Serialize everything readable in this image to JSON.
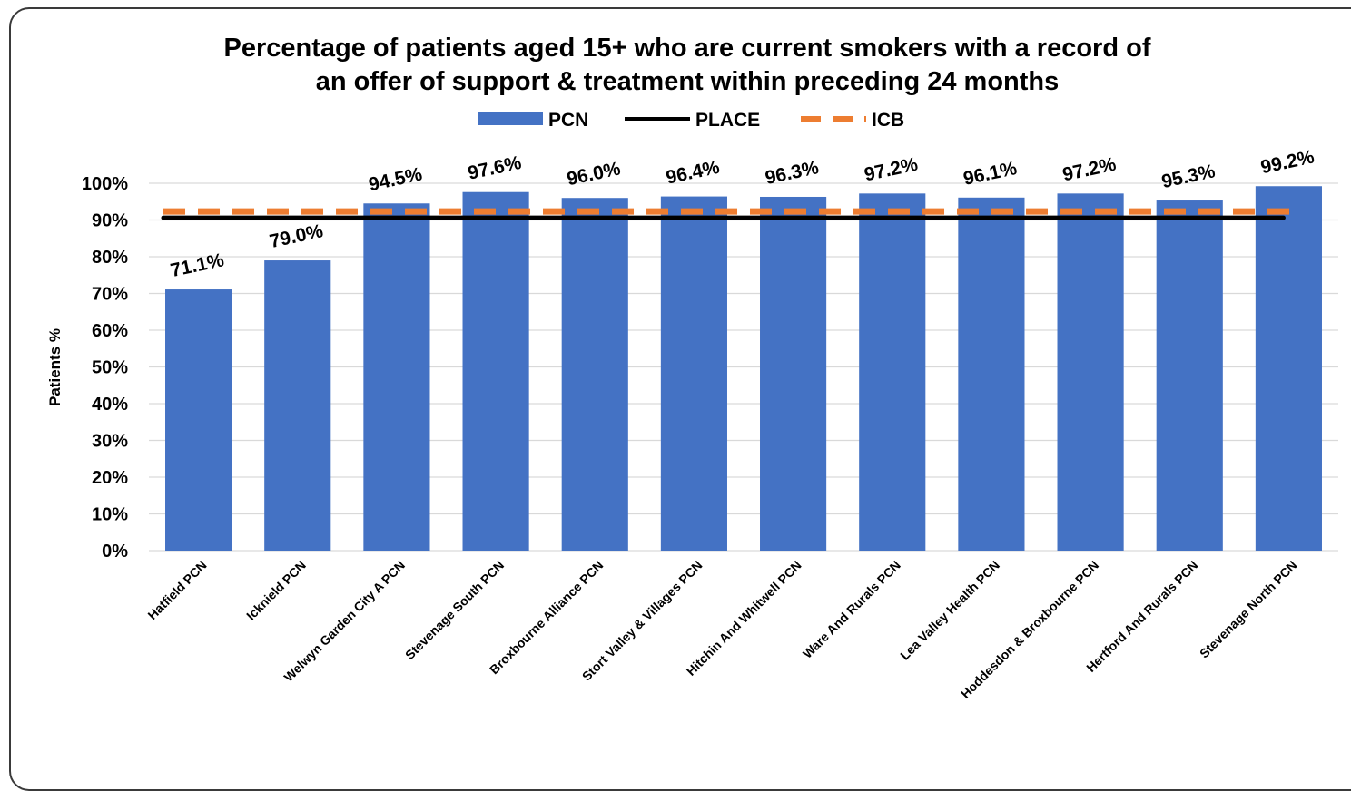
{
  "chart_data": {
    "type": "bar",
    "title_lines": [
      "Percentage of patients aged 15+ who are current smokers with a record of",
      "an offer of support & treatment within preceding 24 months"
    ],
    "ylabel": "Patients %",
    "xlabel": "",
    "ylim": [
      0,
      100
    ],
    "yticks": [
      0,
      10,
      20,
      30,
      40,
      50,
      60,
      70,
      80,
      90,
      100
    ],
    "ytick_labels": [
      "0%",
      "10%",
      "20%",
      "30%",
      "40%",
      "50%",
      "60%",
      "70%",
      "80%",
      "90%",
      "100%"
    ],
    "grid": true,
    "legend_position": "top",
    "categories": [
      "Hatfield PCN",
      "Icknield PCN",
      "Welwyn Garden City A PCN",
      "Stevenage South PCN",
      "Broxbourne Alliance PCN",
      "Stort Valley & Villages PCN",
      "Hitchin And Whitwell PCN",
      "Ware And Rurals PCN",
      "Lea Valley Health PCN",
      "Hoddesdon & Broxbourne PCN",
      "Hertford And Rurals PCN",
      "Stevenage North PCN"
    ],
    "series": [
      {
        "name": "PCN",
        "kind": "bar",
        "color": "#4472C4",
        "values": [
          71.1,
          79.0,
          94.5,
          97.6,
          96.0,
          96.4,
          96.3,
          97.2,
          96.1,
          97.2,
          95.3,
          99.2
        ],
        "labels": [
          "71.1%",
          "79.0%",
          "94.5%",
          "97.6%",
          "96.0%",
          "96.4%",
          "96.3%",
          "97.2%",
          "96.1%",
          "97.2%",
          "95.3%",
          "99.2%"
        ]
      },
      {
        "name": "PLACE",
        "kind": "line",
        "style": "solid",
        "color": "#000000",
        "value": 90.6
      },
      {
        "name": "ICB",
        "kind": "line",
        "style": "dashed",
        "color": "#ED7D31",
        "value": 92.3
      }
    ]
  }
}
